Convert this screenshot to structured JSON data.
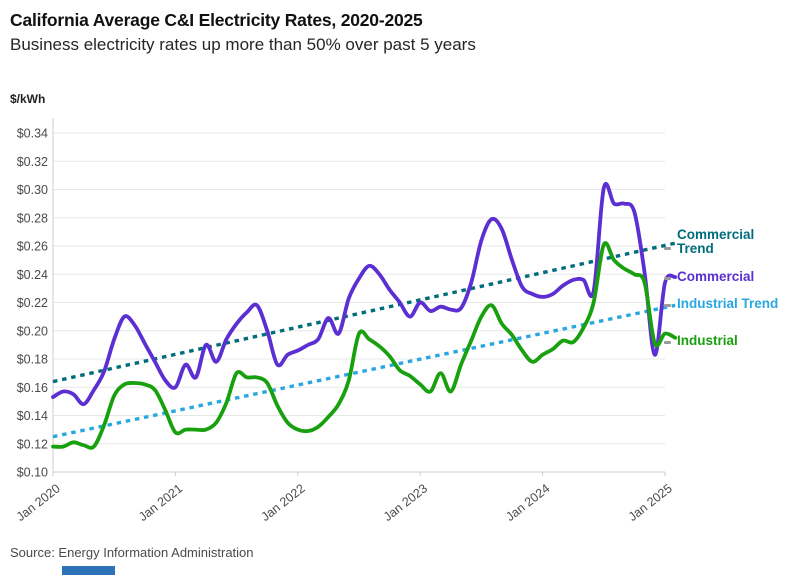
{
  "header": {
    "title": "California Average C&I Electricity Rates, 2020-2025",
    "subtitle": "Business electricity rates up more than 50% over past 5 years"
  },
  "source": {
    "text": "Source: Energy Information Administration"
  },
  "chart_data": {
    "type": "line",
    "title": "California Average C&I Electricity Rates, 2020-2025",
    "subtitle": "Business electricity rates up more than 50% over past 5 years",
    "unit_label": "$/kWh",
    "x_start": "Jan 2020",
    "x_end": "Feb 2025",
    "x_frequency": "monthly",
    "x_tick_labels": [
      "Jan 2020",
      "Jan 2021",
      "Jan 2022",
      "Jan 2023",
      "Jan 2024",
      "Jan 2025"
    ],
    "y_tick_labels": [
      "$0.10",
      "$0.12",
      "$0.14",
      "$0.16",
      "$0.18",
      "$0.20",
      "$0.22",
      "$0.24",
      "$0.26",
      "$0.28",
      "$0.30",
      "$0.32",
      "$0.34"
    ],
    "ylim": [
      0.1,
      0.34
    ],
    "y_tick_step": 0.02,
    "grid": "horizontal",
    "legend_position": "right",
    "series": [
      {
        "name": "Commercial",
        "color": "#5b2fd1",
        "style": "solid",
        "values": [
          0.153,
          0.157,
          0.155,
          0.148,
          0.158,
          0.171,
          0.194,
          0.21,
          0.204,
          0.191,
          0.178,
          0.165,
          0.16,
          0.176,
          0.167,
          0.19,
          0.178,
          0.194,
          0.205,
          0.213,
          0.218,
          0.2,
          0.176,
          0.183,
          0.186,
          0.19,
          0.194,
          0.209,
          0.198,
          0.223,
          0.237,
          0.246,
          0.24,
          0.229,
          0.22,
          0.21,
          0.22,
          0.214,
          0.217,
          0.215,
          0.216,
          0.234,
          0.264,
          0.279,
          0.272,
          0.25,
          0.231,
          0.226,
          0.224,
          0.226,
          0.232,
          0.236,
          0.236,
          0.228,
          0.301,
          0.29,
          0.29,
          0.284,
          0.241,
          0.183,
          0.234,
          0.238
        ]
      },
      {
        "name": "Industrial",
        "color": "#18a00e",
        "style": "solid",
        "values": [
          0.118,
          0.118,
          0.121,
          0.119,
          0.118,
          0.133,
          0.154,
          0.162,
          0.163,
          0.162,
          0.158,
          0.144,
          0.128,
          0.13,
          0.13,
          0.13,
          0.135,
          0.149,
          0.17,
          0.167,
          0.167,
          0.163,
          0.147,
          0.135,
          0.13,
          0.129,
          0.132,
          0.139,
          0.148,
          0.165,
          0.198,
          0.194,
          0.189,
          0.182,
          0.172,
          0.168,
          0.162,
          0.157,
          0.17,
          0.157,
          0.176,
          0.193,
          0.21,
          0.218,
          0.205,
          0.197,
          0.186,
          0.178,
          0.183,
          0.187,
          0.193,
          0.192,
          0.202,
          0.22,
          0.261,
          0.25,
          0.244,
          0.24,
          0.234,
          0.191,
          0.198,
          0.195
        ]
      },
      {
        "name": "Commercial Trend",
        "color": "#006d7a",
        "style": "dashed",
        "trend_endpoints": [
          0.164,
          0.262
        ]
      },
      {
        "name": "Industrial Trend",
        "color": "#29a8e0",
        "style": "dashed",
        "trend_endpoints": [
          0.125,
          0.218
        ]
      }
    ]
  },
  "legend": {
    "commercial_trend": "Commercial Trend",
    "commercial": "Commercial",
    "industrial_trend": "Industrial Trend",
    "industrial": "Industrial"
  },
  "colors": {
    "commercial": "#5b2fd1",
    "industrial": "#18a00e",
    "commercial_trend": "#006d7a",
    "industrial_trend": "#29a8e0",
    "grid": "#e7e7e7",
    "axis": "#cccccc",
    "tick_text": "#4a4a4a",
    "footer_bar": "#2d72b8"
  }
}
